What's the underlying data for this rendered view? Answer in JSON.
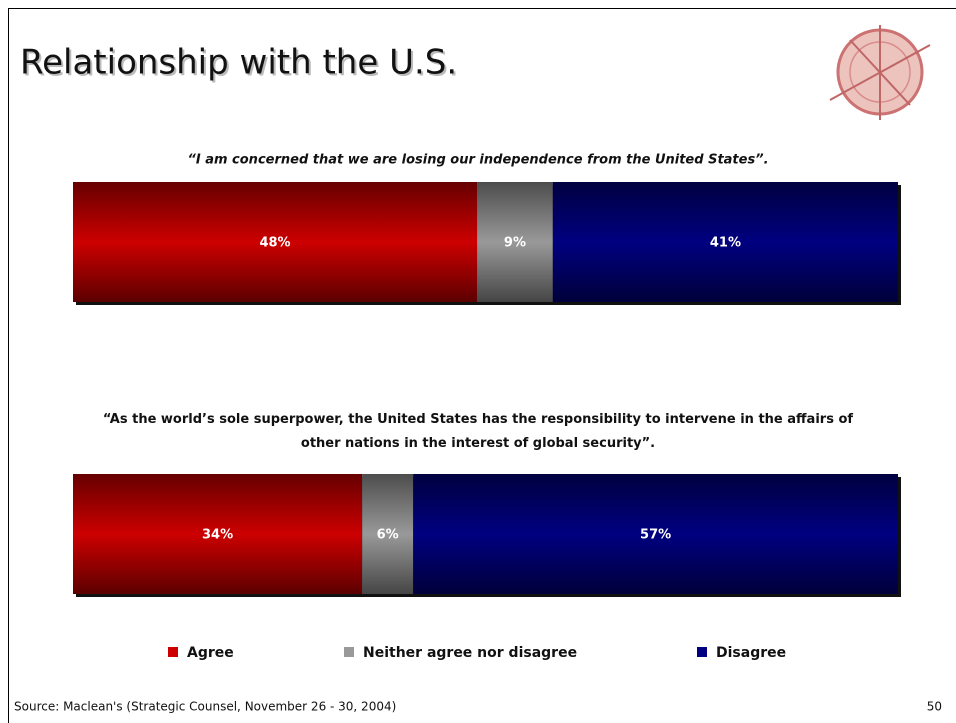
{
  "header": {
    "title": "Relationship with the U.S."
  },
  "chart_data": [
    {
      "type": "bar",
      "stacked": true,
      "title": "“I am concerned that we are losing our independence from the United States”.",
      "series": [
        {
          "name": "Agree",
          "color": "#cc0000",
          "values": [
            48
          ],
          "value_labels": [
            "48%"
          ]
        },
        {
          "name": "Neither agree nor disagree",
          "color": "#999999",
          "values": [
            9
          ],
          "value_labels": [
            "9%"
          ]
        },
        {
          "name": "Disagree",
          "color": "#000080",
          "values": [
            41
          ],
          "value_labels": [
            "41%"
          ]
        }
      ]
    },
    {
      "type": "bar",
      "stacked": true,
      "title": "“As the world’s sole superpower, the United States has the responsibility to intervene in the affairs of other nations in the interest of global security”.",
      "series": [
        {
          "name": "Agree",
          "color": "#cc0000",
          "values": [
            34
          ],
          "value_labels": [
            "34%"
          ]
        },
        {
          "name": "Neither agree nor disagree",
          "color": "#999999",
          "values": [
            6
          ],
          "value_labels": [
            "6%"
          ]
        },
        {
          "name": "Disagree",
          "color": "#000080",
          "values": [
            57
          ],
          "value_labels": [
            "57%"
          ]
        }
      ]
    }
  ],
  "footer": {
    "source": "Source: Maclean's (Strategic Counsel, November 26 - 30, 2004)",
    "page": "50"
  }
}
